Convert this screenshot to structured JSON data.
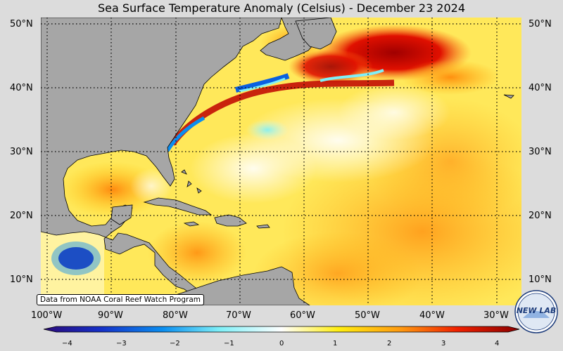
{
  "title": "Sea Surface Temperature Anomaly (Celsius) - December 23 2024",
  "lat_labels_left": [
    "50°N",
    "40°N",
    "30°N",
    "20°N",
    "10°N"
  ],
  "lat_labels_right": [
    "50°N",
    "40°N",
    "30°N",
    "20°N",
    "10°N"
  ],
  "lon_labels": [
    "100°W",
    "90°W",
    "80°W",
    "70°W",
    "60°W",
    "50°W",
    "40°W",
    "30°W"
  ],
  "credit": "Data from NOAA Coral Reef Watch Program",
  "colorbar": {
    "ticks": [
      "−4",
      "−3",
      "−2",
      "−1",
      "0",
      "1",
      "2",
      "3",
      "4"
    ],
    "colors": [
      "#2b0a7a",
      "#1530c8",
      "#0a8ef0",
      "#7ff0f8",
      "#ffffff",
      "#ffee10",
      "#ff9a10",
      "#f02000",
      "#8a0000"
    ]
  },
  "logo": {
    "text": "NEW LAB",
    "icon": "noaa-lab-seal-icon"
  },
  "colors": {
    "land": "#a6a6a6",
    "background": "#dcdcdc"
  }
}
